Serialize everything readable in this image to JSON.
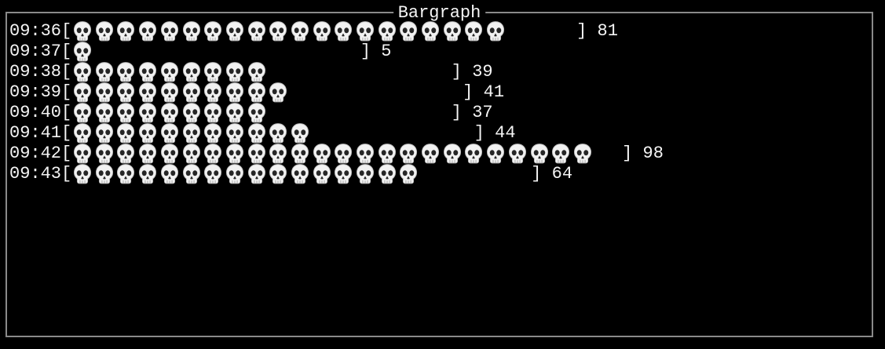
{
  "app": {
    "title": "Bargraph"
  },
  "colors": {
    "background": "#000000",
    "border": "#8a8a8a",
    "text": "#f5f5f5",
    "skull_fill": "#f2f2f2",
    "skull_shade": "#b9b9b9",
    "skull_eye": "#262626"
  },
  "chart_data": {
    "type": "bar",
    "orientation": "horizontal",
    "title": "Bargraph",
    "bar_symbol": "skull-emoji",
    "bar_open": "[",
    "bar_close": "]",
    "categories": [
      "09:36",
      "09:37",
      "09:38",
      "09:39",
      "09:40",
      "09:41",
      "09:42",
      "09:43"
    ],
    "values": [
      81,
      5,
      39,
      41,
      37,
      44,
      98,
      64
    ],
    "symbols_per_bar": [
      20,
      1,
      9,
      10,
      9,
      11,
      24,
      16
    ],
    "units_per_symbol": 4,
    "xlabel": "",
    "ylabel": "",
    "xlim": [
      0,
      104
    ],
    "grid": false,
    "legend": "none",
    "value_label_position": "right-of-bar"
  }
}
